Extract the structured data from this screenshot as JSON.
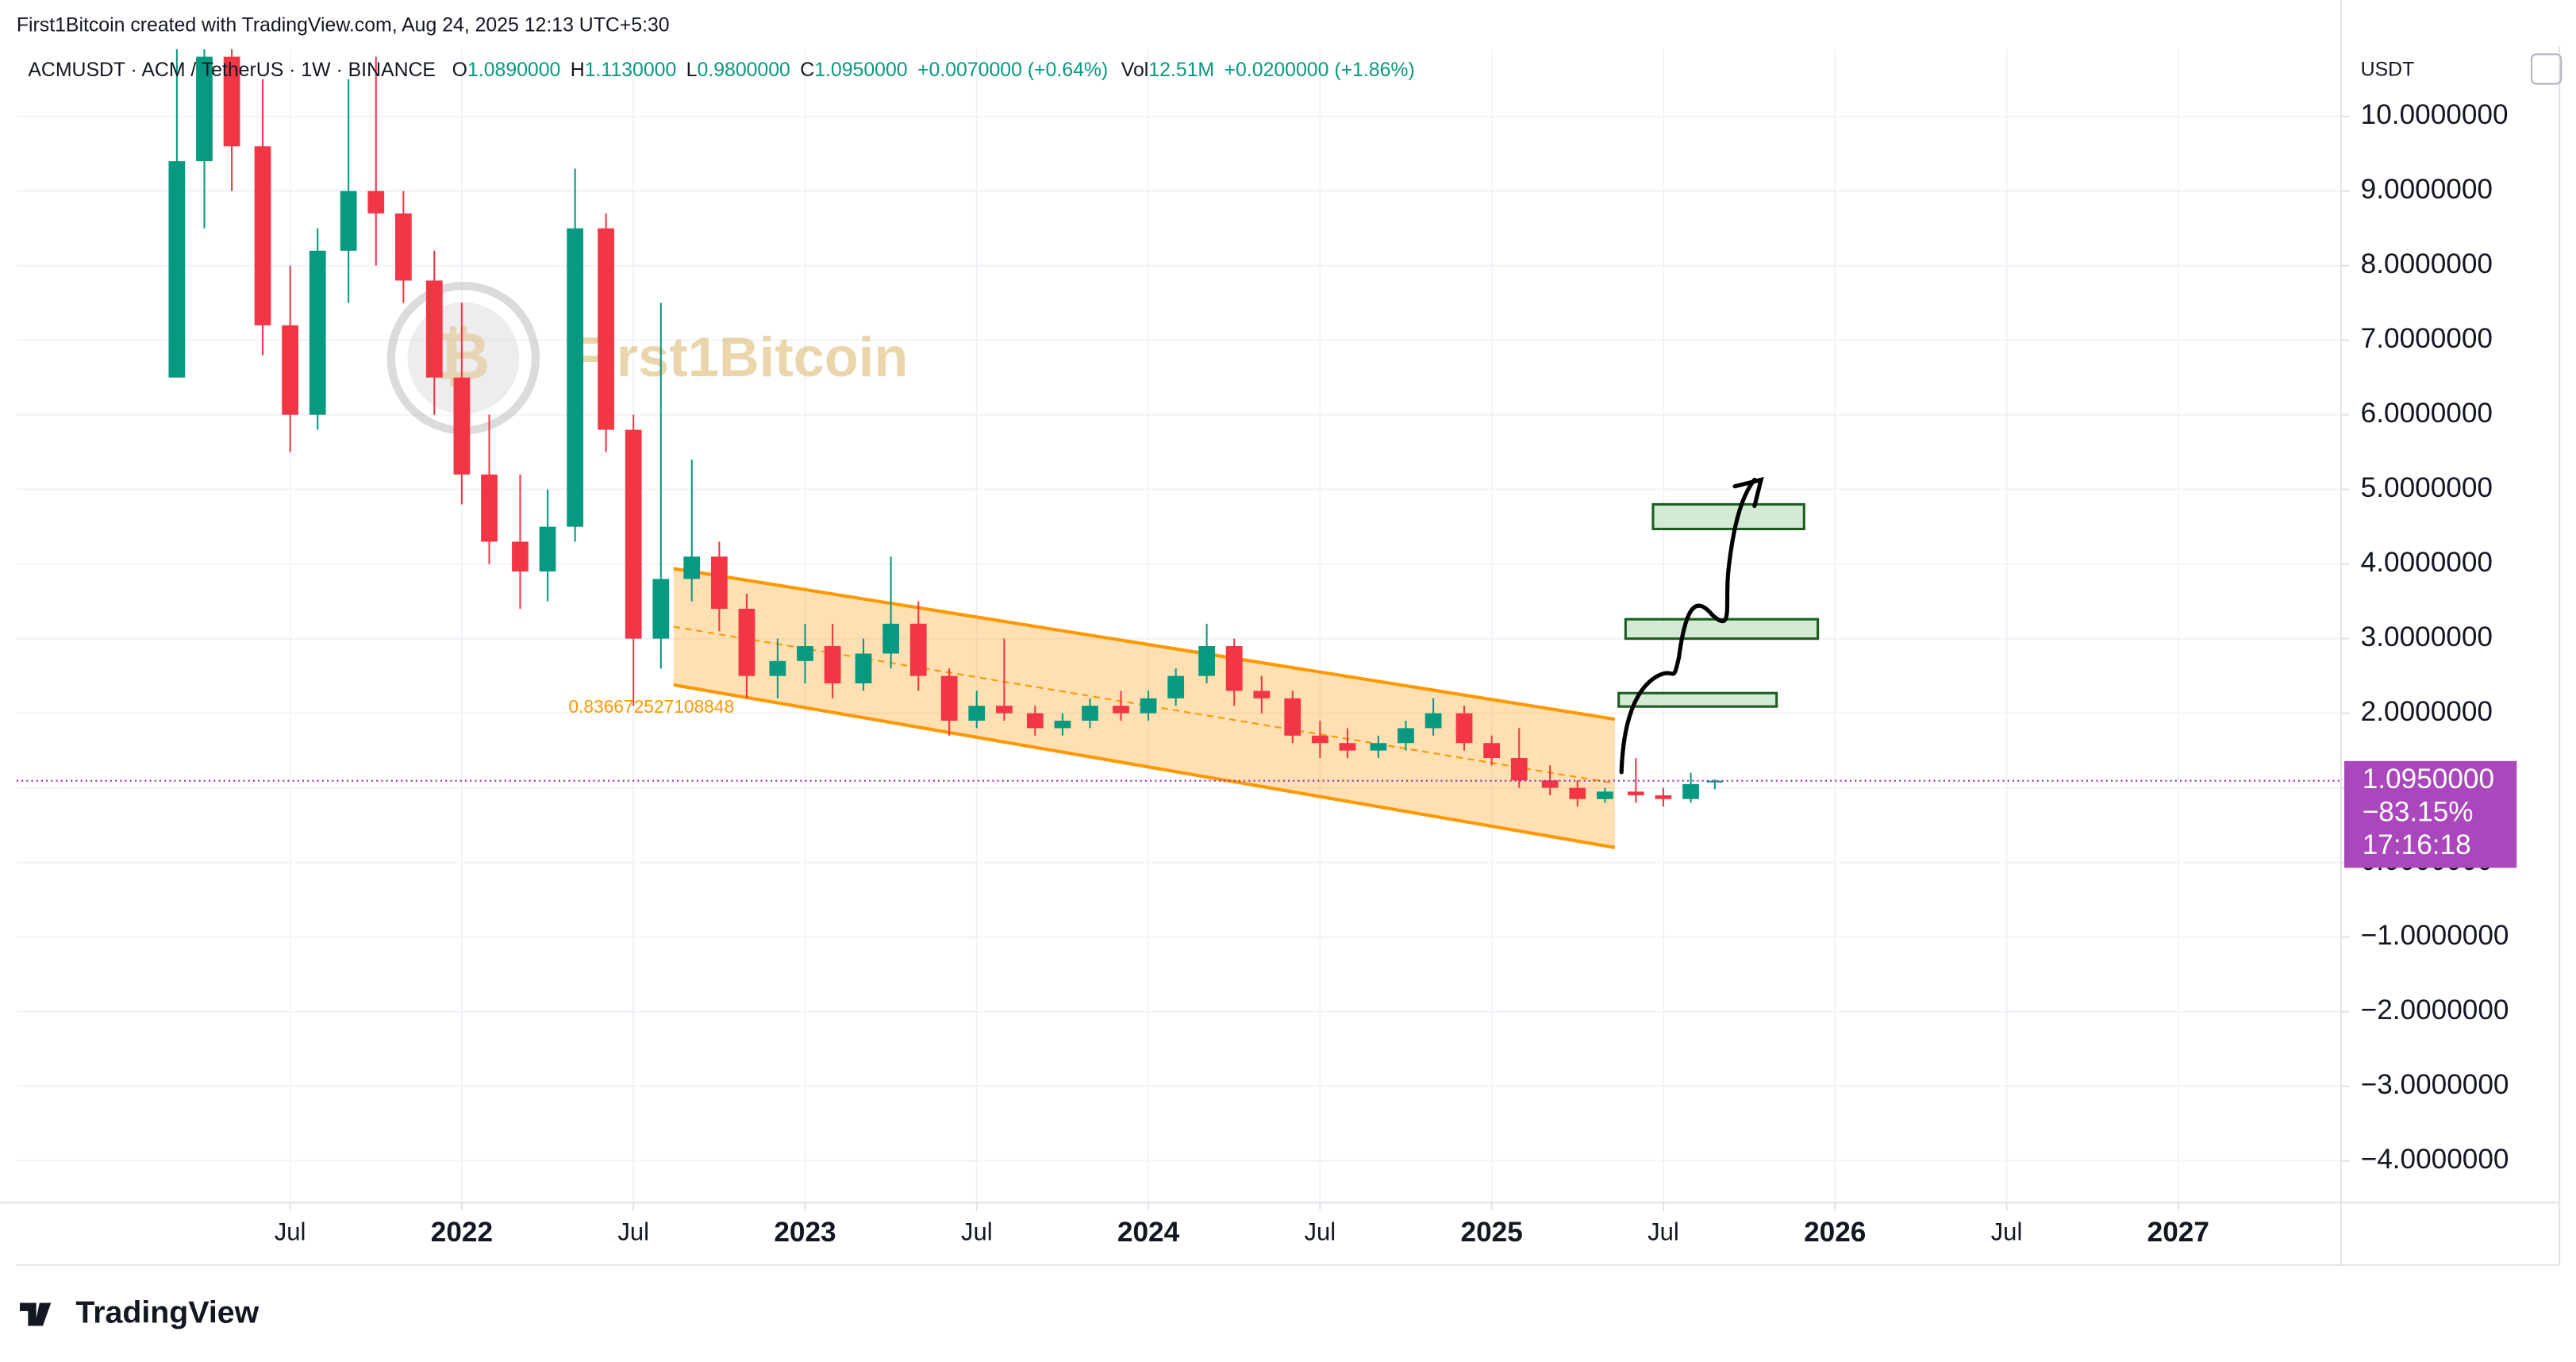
{
  "chart_data": {
    "type": "candlestick",
    "title": "First1Bitcoin created with TradingView.com, Aug 24, 2025 12:13 UTC+5:30",
    "symbol": "ACMUSDT · ACM / TetherUS · 1W · BINANCE",
    "legend_items": [
      [
        "O",
        "1.0890000"
      ],
      [
        "H",
        "1.1130000"
      ],
      [
        "L",
        "0.9800000"
      ],
      [
        "C",
        "1.0950000"
      ]
    ],
    "change": "+0.0070000 (+0.64%)",
    "volume_label": "Vol",
    "volume": "12.51M",
    "volume_change": "+0.0200000 (+1.86%)",
    "currency": "USDT",
    "price_label": [
      "1.0950000",
      "−83.15%",
      "17:16:18"
    ],
    "watermark": "First1Bitcoin",
    "brand": "TradingView",
    "annotation": "0.836672527108848",
    "up_color": "#089981",
    "down_color": "#f23645",
    "grid": true,
    "xlim": [
      2020.703,
      2027.474
    ],
    "ylim": [
      -4.56,
      10.9
    ],
    "xticks": [
      {
        "value": 2021.5,
        "label": "Jul"
      },
      2022,
      {
        "value": 2022.5,
        "label": "Jul"
      },
      2023,
      {
        "value": 2023.5,
        "label": "Jul"
      },
      2024,
      {
        "value": 2024.5,
        "label": "Jul"
      },
      2025,
      {
        "value": 2025.5,
        "label": "Jul"
      },
      2026,
      {
        "value": 2026.5,
        "label": "Jul"
      },
      2027
    ],
    "yticks": [
      {
        "value": 10,
        "label": "10.0000000"
      },
      {
        "value": 9,
        "label": "9.0000000"
      },
      {
        "value": 8,
        "label": "8.0000000"
      },
      {
        "value": 7,
        "label": "7.0000000"
      },
      {
        "value": 6,
        "label": "6.0000000"
      },
      {
        "value": 5,
        "label": "5.0000000"
      },
      {
        "value": 4,
        "label": "4.0000000"
      },
      {
        "value": 3,
        "label": "3.0000000"
      },
      {
        "value": 2,
        "label": "2.0000000"
      },
      {
        "value": 1,
        "label": "1.0000000"
      },
      {
        "value": 0,
        "label": "0.0000000"
      },
      {
        "value": -1,
        "label": "−1.0000000"
      },
      {
        "value": -2,
        "label": "−2.0000000"
      },
      {
        "value": -3,
        "label": "−3.0000000"
      },
      {
        "value": -4,
        "label": "−4.0000000"
      }
    ],
    "x": [
      2021.17,
      2021.25,
      2021.33,
      2021.42,
      2021.5,
      2021.58,
      2021.67,
      2021.75,
      2021.83,
      2021.92,
      2022.0,
      2022.08,
      2022.17,
      2022.25,
      2022.33,
      2022.42,
      2022.5,
      2022.58,
      2022.67,
      2022.75,
      2022.83,
      2022.92,
      2023.0,
      2023.08,
      2023.17,
      2023.25,
      2023.33,
      2023.42,
      2023.5,
      2023.58,
      2023.67,
      2023.75,
      2023.83,
      2023.92,
      2024.0,
      2024.08,
      2024.17,
      2024.25,
      2024.33,
      2024.42,
      2024.5,
      2024.58,
      2024.67,
      2024.75,
      2024.83,
      2024.92,
      2025.0,
      2025.08,
      2025.17,
      2025.25,
      2025.33,
      2025.42,
      2025.5,
      2025.58,
      2025.65
    ],
    "open": [
      6.5,
      9.4,
      10.8,
      9.6,
      7.2,
      6.0,
      8.2,
      9.0,
      8.7,
      7.8,
      6.5,
      5.2,
      4.3,
      3.9,
      4.5,
      8.5,
      5.8,
      3.0,
      3.8,
      4.1,
      3.4,
      2.5,
      2.7,
      2.9,
      2.4,
      2.8,
      3.2,
      2.5,
      1.9,
      2.1,
      2.0,
      1.8,
      1.9,
      2.1,
      2.0,
      2.2,
      2.5,
      2.9,
      2.3,
      2.2,
      1.7,
      1.6,
      1.5,
      1.6,
      1.8,
      2.0,
      1.6,
      1.4,
      1.1,
      1.0,
      0.85,
      0.95,
      0.9,
      0.85,
      1.089
    ],
    "high": [
      11,
      11,
      11,
      10.5,
      8.0,
      8.5,
      10.5,
      10.8,
      9.0,
      8.2,
      7.5,
      6.0,
      5.2,
      5.0,
      9.3,
      8.7,
      6.0,
      7.5,
      5.4,
      4.3,
      3.6,
      3.0,
      3.2,
      3.2,
      3.0,
      4.1,
      3.5,
      2.6,
      2.3,
      3.0,
      2.1,
      2.0,
      2.2,
      2.3,
      2.3,
      2.6,
      3.2,
      3.0,
      2.5,
      2.3,
      1.9,
      1.8,
      1.7,
      1.9,
      2.2,
      2.1,
      1.7,
      1.8,
      1.3,
      1.1,
      1.0,
      1.4,
      1.0,
      1.2,
      1.113
    ],
    "low": [
      6.5,
      8.5,
      9.0,
      6.8,
      5.5,
      5.8,
      7.5,
      8.0,
      7.5,
      6.0,
      4.8,
      4.0,
      3.4,
      3.5,
      4.3,
      5.5,
      2.1,
      2.6,
      3.5,
      3.1,
      2.2,
      2.2,
      2.4,
      2.2,
      2.3,
      2.6,
      2.3,
      1.7,
      1.8,
      1.9,
      1.7,
      1.7,
      1.8,
      1.9,
      1.9,
      2.1,
      2.4,
      2.1,
      2.0,
      1.6,
      1.4,
      1.4,
      1.4,
      1.5,
      1.7,
      1.5,
      1.3,
      1.0,
      0.9,
      0.75,
      0.8,
      0.8,
      0.75,
      0.8,
      0.98
    ],
    "close": [
      9.4,
      10.8,
      9.6,
      7.2,
      6.0,
      8.2,
      9.0,
      8.7,
      7.8,
      6.5,
      5.2,
      4.3,
      3.9,
      4.5,
      8.5,
      5.8,
      3.0,
      3.8,
      4.1,
      3.4,
      2.5,
      2.7,
      2.9,
      2.4,
      2.8,
      3.2,
      2.5,
      1.9,
      2.1,
      2.0,
      1.8,
      1.9,
      2.1,
      2.0,
      2.2,
      2.5,
      2.9,
      2.3,
      2.2,
      1.7,
      1.6,
      1.5,
      1.6,
      1.8,
      2.0,
      1.6,
      1.4,
      1.1,
      1.0,
      0.85,
      0.95,
      0.9,
      0.85,
      1.05,
      1.095
    ],
    "channel": {
      "x": [
        2022.617,
        2025.359
      ],
      "upper": [
        3.94,
        1.92
      ],
      "lower": [
        2.38,
        0.2
      ]
    },
    "boxes": [
      {
        "x": [
          2025.37,
          2025.83
        ],
        "y": [
          2.09,
          2.27
        ]
      },
      {
        "x": [
          2025.39,
          2025.95
        ],
        "y": [
          3.0,
          3.26
        ]
      },
      {
        "x": [
          2025.47,
          2025.91
        ],
        "y": [
          4.47,
          4.8
        ]
      }
    ]
  }
}
